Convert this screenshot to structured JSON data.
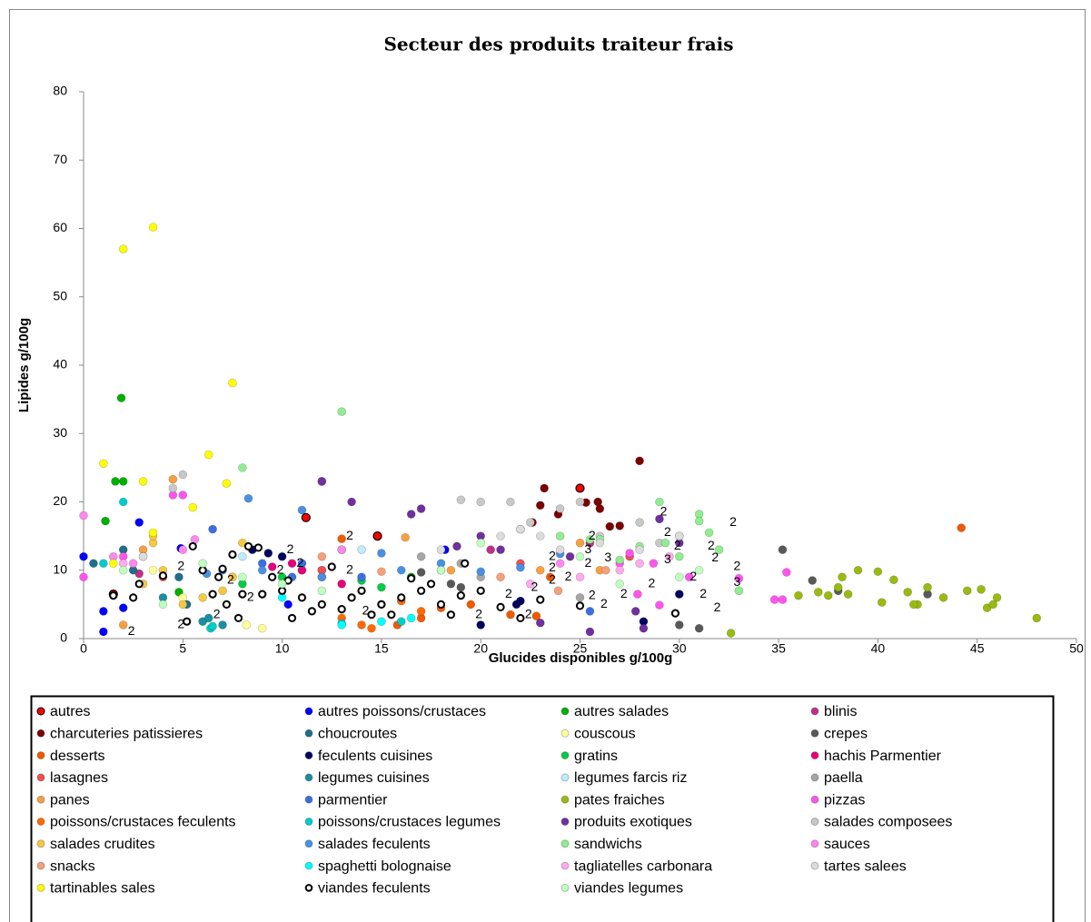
{
  "chart_data": {
    "type": "scatter",
    "title": "Secteur des produits traiteur frais",
    "x_label": "Glucides disponibles g/100g",
    "y_label": "Lipides g/100g",
    "xlim": [
      0,
      50
    ],
    "xticks": [
      0,
      5,
      10,
      15,
      20,
      25,
      30,
      35,
      40,
      45,
      50
    ],
    "ylim": [
      0,
      80
    ],
    "yticks": [
      0,
      10,
      20,
      30,
      40,
      50,
      60,
      70,
      80
    ],
    "grid": false,
    "legend": "bottom",
    "series": [
      {
        "name": "autres",
        "color": "#ff0000",
        "edgecolor": "#000000",
        "x": [
          1.5,
          11.2,
          25,
          14.8
        ],
        "values": [
          6.5,
          17.7,
          22,
          15
        ]
      },
      {
        "name": "autres poissons/crustaces",
        "color": "#0000ff",
        "x": [
          0,
          1,
          1,
          2.8,
          4.9,
          18.2,
          2,
          10.3
        ],
        "values": [
          12,
          1,
          4,
          17,
          13.2,
          13,
          4.5,
          5
        ]
      },
      {
        "name": "autres salades",
        "color": "#00b000",
        "x": [
          1.9,
          1.6,
          2,
          1.1,
          4.8,
          16.5
        ],
        "values": [
          35.2,
          23,
          23,
          17.2,
          6.8,
          9
        ]
      },
      {
        "name": "blinis",
        "color": "#c0308a",
        "x": [
          2.8,
          12,
          20.5,
          25.5
        ],
        "values": [
          9.5,
          23,
          13,
          14
        ]
      },
      {
        "name": "charcuteries patissieres",
        "color": "#7b0000",
        "x": [
          23.2,
          23.9,
          25.3,
          25.9,
          26,
          28,
          27,
          22.6,
          26.5,
          23
        ],
        "values": [
          22,
          18.2,
          19.9,
          20,
          19,
          26,
          16.5,
          17,
          16.4,
          19.5
        ]
      },
      {
        "name": "choucroutes",
        "color": "#1f6e8c",
        "x": [
          0.5,
          2,
          2.5,
          4.8,
          5.2
        ],
        "values": [
          11,
          13,
          10,
          9,
          5
        ]
      },
      {
        "name": "couscous",
        "color": "#ffff99",
        "x": [
          3.5,
          5,
          7.5,
          8.2,
          9
        ],
        "values": [
          10,
          6,
          9,
          2,
          1.5
        ]
      },
      {
        "name": "crepes",
        "color": "#595959",
        "x": [
          35.2,
          36.7,
          38,
          42.5,
          17,
          18.5,
          19,
          31,
          30
        ],
        "values": [
          13,
          8.5,
          7,
          6.5,
          9.7,
          8,
          7.5,
          1.5,
          2
        ]
      },
      {
        "name": "desserts",
        "color": "#f05a00",
        "x": [
          44.2,
          13,
          15.8,
          17,
          22.8,
          23.5,
          18,
          19.5,
          21.5
        ],
        "values": [
          16.2,
          14.6,
          2,
          3,
          3.3,
          9,
          4.5,
          5,
          3.5
        ]
      },
      {
        "name": "feculents cuisines",
        "color": "#00005e",
        "x": [
          10,
          12,
          8.5,
          9.3,
          21.8,
          22,
          20,
          28.2,
          30
        ],
        "values": [
          12,
          10,
          13,
          12.5,
          5,
          5.5,
          2,
          2.5,
          6.5
        ]
      },
      {
        "name": "gratins",
        "color": "#00cc44",
        "x": [
          14,
          15,
          10,
          11,
          8
        ],
        "values": [
          8.5,
          7.5,
          9,
          10,
          8
        ]
      },
      {
        "name": "hachis Parmentier",
        "color": "#e8007a",
        "x": [
          9.5,
          10.5,
          11,
          12,
          13
        ],
        "values": [
          10.5,
          11,
          10,
          9,
          8
        ]
      },
      {
        "name": "lasagnes",
        "color": "#f05050",
        "x": [
          4,
          12,
          22,
          27.5
        ],
        "values": [
          9,
          10,
          11,
          12
        ]
      },
      {
        "name": "legumes cuisines",
        "color": "#1a8fa0",
        "x": [
          6,
          6.3,
          7,
          4
        ],
        "values": [
          2.5,
          3,
          2,
          6
        ]
      },
      {
        "name": "legumes farcis riz",
        "color": "#c0ecf8",
        "x": [
          6,
          8,
          14
        ],
        "values": [
          10,
          12,
          13
        ]
      },
      {
        "name": "paella",
        "color": "#a6a6a6",
        "x": [
          18,
          19,
          20,
          17,
          25
        ],
        "values": [
          10,
          11,
          9,
          12,
          6
        ]
      },
      {
        "name": "panes",
        "color": "#f7a040",
        "x": [
          2,
          3,
          4.5,
          13,
          16.2,
          18.5,
          26,
          23,
          25
        ],
        "values": [
          2,
          13,
          23.3,
          13,
          14.8,
          10,
          10,
          10,
          14
        ]
      },
      {
        "name": "parmentier",
        "color": "#3b6fe0",
        "x": [
          6.5,
          7,
          9,
          11,
          10.5,
          14,
          25.5
        ],
        "values": [
          16,
          10,
          11,
          11,
          9,
          9,
          4
        ]
      },
      {
        "name": "pates fraiches",
        "color": "#99bb11",
        "x": [
          32.6,
          36,
          37,
          38,
          38.5,
          39,
          40,
          40.2,
          40.8,
          41.5,
          42,
          42.5,
          43.3,
          44.5,
          45.2,
          45.5,
          45.8,
          46,
          48,
          37.5,
          38.2,
          41.8
        ],
        "values": [
          0.8,
          6.3,
          6.8,
          7.5,
          6.5,
          10,
          9.8,
          5.3,
          8.6,
          6.8,
          5,
          7.5,
          6,
          7,
          7.2,
          4.5,
          5,
          6,
          3,
          6.3,
          9,
          5
        ]
      },
      {
        "name": "pizzas",
        "color": "#ff55ee",
        "x": [
          0,
          4.5,
          5,
          2,
          27,
          27.5,
          28.7,
          30.5,
          33,
          34.8,
          35.2,
          35.4,
          29,
          27.9
        ],
        "values": [
          9,
          21,
          21,
          12,
          11,
          12.5,
          11,
          9,
          8.8,
          5.7,
          5.7,
          9.7,
          4.9,
          6.5
        ]
      },
      {
        "name": "poissons/crustaces feculents",
        "color": "#ff6a00",
        "x": [
          13,
          14,
          14.5,
          15,
          16,
          17
        ],
        "values": [
          3,
          2,
          1.5,
          5,
          5.5,
          4
        ]
      },
      {
        "name": "poissons/crustaces legumes",
        "color": "#00cccc",
        "x": [
          2,
          6.4,
          6.5,
          13,
          16,
          1
        ],
        "values": [
          20,
          1.5,
          1.8,
          2.2,
          2.5,
          11
        ]
      },
      {
        "name": "produits exotiques",
        "color": "#7030a0",
        "x": [
          12,
          13.5,
          16.5,
          17,
          18.8,
          20,
          21,
          22,
          23,
          24.5,
          25.5,
          27.8,
          28.2,
          29,
          30
        ],
        "values": [
          23,
          20,
          18.2,
          19,
          13.5,
          15,
          13,
          16,
          2.3,
          12,
          1,
          4,
          1.5,
          17.5,
          14
        ]
      },
      {
        "name": "salades composees",
        "color": "#c8c8c8",
        "x": [
          5,
          4.5,
          20,
          21.5,
          19,
          22.5,
          24,
          25,
          26,
          28,
          29,
          30
        ],
        "values": [
          24,
          22,
          20,
          20,
          20.3,
          17,
          19,
          20,
          15,
          17,
          14,
          15
        ]
      },
      {
        "name": "salades crudites",
        "color": "#f5c842",
        "x": [
          3,
          3.5,
          3.5,
          4,
          5,
          6,
          7,
          7.5,
          8
        ],
        "values": [
          8,
          14,
          15,
          10,
          5,
          6,
          7,
          9,
          14
        ]
      },
      {
        "name": "salades feculents",
        "color": "#4a90e2",
        "x": [
          8.3,
          11,
          15,
          16,
          18,
          20,
          22,
          24,
          6.2,
          9,
          12
        ],
        "values": [
          20.5,
          18.8,
          12.5,
          10,
          11,
          9.8,
          10.4,
          12.4,
          9.5,
          10,
          9
        ]
      },
      {
        "name": "sandwichs",
        "color": "#90ee90",
        "x": [
          8,
          13,
          26,
          29,
          31,
          31,
          31.5,
          32,
          33,
          27,
          28,
          29.3,
          30,
          25.5,
          24
        ],
        "values": [
          25,
          33.2,
          14.5,
          20,
          18.2,
          17.2,
          15.5,
          13,
          7,
          11.5,
          13.5,
          14,
          12,
          14.5,
          15
        ]
      },
      {
        "name": "sauces",
        "color": "#ff88ee",
        "x": [
          0,
          1.5,
          2.5,
          5,
          5.6,
          13,
          24
        ],
        "values": [
          18,
          12,
          11,
          13,
          14.5,
          13,
          11
        ]
      },
      {
        "name": "snacks",
        "color": "#f4a07a",
        "x": [
          21,
          23.9,
          26.3,
          12,
          15
        ],
        "values": [
          9,
          7,
          10,
          12,
          9.8
        ]
      },
      {
        "name": "spaghetti bolognaise",
        "color": "#00ffff",
        "x": [
          13,
          15,
          16.5,
          10
        ],
        "values": [
          2,
          2.5,
          3,
          6
        ]
      },
      {
        "name": "tagliatelles carbonara",
        "color": "#ffaaee",
        "x": [
          2,
          3,
          22.5,
          25,
          27,
          28,
          29.5
        ],
        "values": [
          11,
          12,
          8,
          9,
          10,
          11,
          12
        ]
      },
      {
        "name": "tartes salees",
        "color": "#dcdcdc",
        "x": [
          3,
          18,
          21,
          22,
          23,
          24,
          26,
          28,
          30
        ],
        "values": [
          12,
          13,
          15,
          16,
          15,
          13,
          14,
          13,
          15
        ]
      },
      {
        "name": "tartinables sales",
        "color": "#ffff00",
        "x": [
          1,
          2,
          3.5,
          3.5,
          1.5,
          3,
          5.5,
          6.3,
          7.5,
          7.2
        ],
        "values": [
          25.6,
          57,
          60.2,
          15.5,
          11,
          23,
          19.2,
          26.9,
          37.4,
          22.7
        ]
      },
      {
        "name": "viandes feculents",
        "color": "#ffffff",
        "edgecolor": "#000000",
        "x": [
          1.5,
          2.5,
          2.8,
          4,
          5.2,
          5.5,
          6,
          6.5,
          6.8,
          7,
          7.2,
          7.5,
          7.8,
          8,
          8.3,
          8.8,
          9,
          9.5,
          10,
          10.3,
          10.5,
          11,
          11.5,
          12,
          12.5,
          13,
          13.5,
          14,
          14.5,
          15,
          15.5,
          16,
          16.5,
          17,
          17.5,
          18,
          18.5,
          19,
          19.2,
          20,
          21,
          22,
          23,
          25,
          29.8
        ],
        "values": [
          6.3,
          6,
          8,
          9.2,
          2.5,
          13.5,
          10,
          6.5,
          9,
          10.2,
          5,
          12.3,
          3,
          6.5,
          13.5,
          13.3,
          6.5,
          9,
          7,
          8.5,
          3,
          6,
          4,
          5,
          10.5,
          4.3,
          6,
          7,
          3.5,
          5,
          3.5,
          6,
          8.8,
          7,
          8,
          5,
          3.5,
          6.3,
          11,
          7,
          4.6,
          3,
          5.7,
          4.8,
          3.7
        ]
      },
      {
        "name": "viandes legumes",
        "color": "#c0ffc0",
        "x": [
          2,
          4,
          6,
          8,
          10,
          12,
          18,
          20,
          25,
          27,
          30,
          31
        ],
        "values": [
          10,
          5,
          11,
          9,
          8,
          7,
          10,
          14,
          12,
          8,
          9,
          10
        ]
      }
    ],
    "annotations": [
      {
        "text": "2",
        "x": 2,
        "y": 1
      },
      {
        "text": "2",
        "x": 4.5,
        "y": 10.5
      },
      {
        "text": "2",
        "x": 4.5,
        "y": 2
      },
      {
        "text": "2",
        "x": 6.3,
        "y": 3.5
      },
      {
        "text": "2",
        "x": 7,
        "y": 8.5
      },
      {
        "text": "2",
        "x": 8,
        "y": 6
      },
      {
        "text": "2",
        "x": 9.5,
        "y": 10
      },
      {
        "text": "2",
        "x": 10,
        "y": 13
      },
      {
        "text": "2",
        "x": 10.5,
        "y": 11
      },
      {
        "text": "2",
        "x": 13,
        "y": 15
      },
      {
        "text": "2",
        "x": 13,
        "y": 10
      },
      {
        "text": "2",
        "x": 13.8,
        "y": 4
      },
      {
        "text": "2",
        "x": 19.5,
        "y": 3.5
      },
      {
        "text": "2",
        "x": 21,
        "y": 6.5
      },
      {
        "text": "2",
        "x": 22,
        "y": 3.5
      },
      {
        "text": "2",
        "x": 22.3,
        "y": 7.5
      },
      {
        "text": "2",
        "x": 23.2,
        "y": 12
      },
      {
        "text": "2",
        "x": 23.2,
        "y": 8.5
      },
      {
        "text": "2",
        "x": 23.2,
        "y": 10.3
      },
      {
        "text": "2",
        "x": 24,
        "y": 9
      },
      {
        "text": "3",
        "x": 25,
        "y": 13
      },
      {
        "text": "2",
        "x": 25,
        "y": 11
      },
      {
        "text": "2",
        "x": 25.2,
        "y": 15
      },
      {
        "text": "2",
        "x": 25.2,
        "y": 6.3
      },
      {
        "text": "2",
        "x": 25.8,
        "y": 5
      },
      {
        "text": "3",
        "x": 26,
        "y": 11.8
      },
      {
        "text": "2",
        "x": 26.8,
        "y": 6.5
      },
      {
        "text": "2",
        "x": 28.2,
        "y": 8
      },
      {
        "text": "2",
        "x": 28.8,
        "y": 18.5
      },
      {
        "text": "2",
        "x": 29,
        "y": 15.5
      },
      {
        "text": "3",
        "x": 29,
        "y": 11.5
      },
      {
        "text": "2",
        "x": 29.5,
        "y": 13.5
      },
      {
        "text": "2",
        "x": 30.3,
        "y": 9
      },
      {
        "text": "2",
        "x": 30.8,
        "y": 6.5
      },
      {
        "text": "2",
        "x": 31.2,
        "y": 13.5
      },
      {
        "text": "2",
        "x": 31.4,
        "y": 11.8
      },
      {
        "text": "2",
        "x": 31.5,
        "y": 4.5
      },
      {
        "text": "2",
        "x": 32.3,
        "y": 17
      },
      {
        "text": "2",
        "x": 32.5,
        "y": 10.5
      },
      {
        "text": "3",
        "x": 32.5,
        "y": 8.2
      }
    ]
  }
}
